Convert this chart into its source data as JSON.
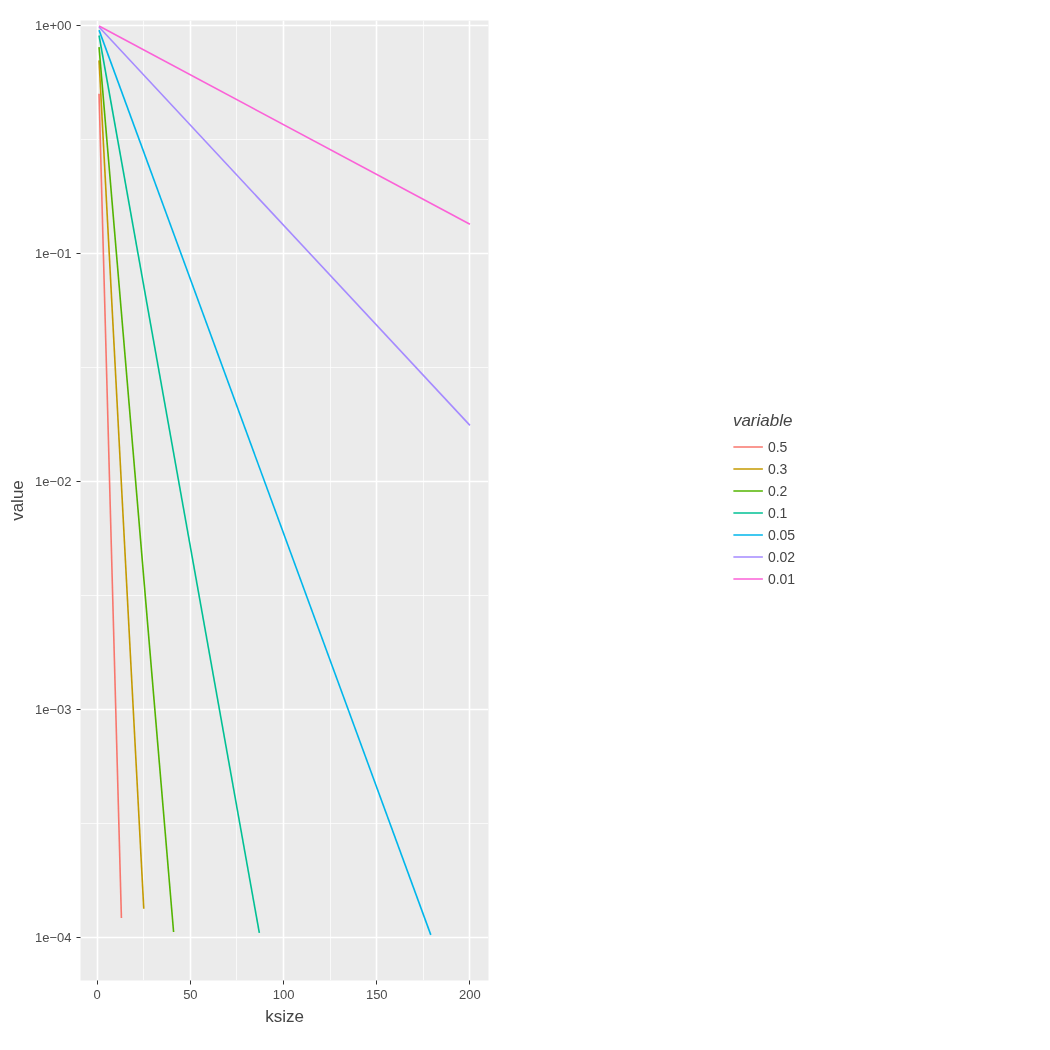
{
  "chart_data": {
    "type": "line",
    "xlabel": "ksize",
    "ylabel": "value",
    "legend_title": "variable",
    "log": "y",
    "grid": true,
    "legend": "right",
    "line_style": "solid",
    "marker": "none",
    "xlim": [
      -8.95,
      209.95
    ],
    "xticks": [
      0,
      50,
      100,
      150,
      200
    ],
    "ylim": [
      6.5e-05,
      1.047
    ],
    "yticks": [
      {
        "value": 0.0001,
        "label": "1e−04"
      },
      {
        "value": 0.001,
        "label": "1e−03"
      },
      {
        "value": 0.01,
        "label": "1e−02"
      },
      {
        "value": 0.1,
        "label": "1e−01"
      },
      {
        "value": 1,
        "label": "1e+00"
      }
    ],
    "series": [
      {
        "name": "0.5",
        "color": "#f8766d",
        "x": [
          1,
          13
        ],
        "values": [
          0.5,
          0.000122
        ]
      },
      {
        "name": "0.3",
        "color": "#c49a00",
        "x": [
          1,
          25
        ],
        "values": [
          0.7,
          0.000134
        ]
      },
      {
        "name": "0.2",
        "color": "#53b400",
        "x": [
          1,
          41
        ],
        "values": [
          0.8,
          0.000106
        ]
      },
      {
        "name": "0.1",
        "color": "#00c094",
        "x": [
          1,
          87
        ],
        "values": [
          0.9,
          0.000105
        ]
      },
      {
        "name": "0.05",
        "color": "#00b6eb",
        "x": [
          1,
          179
        ],
        "values": [
          0.95,
          0.000103
        ]
      },
      {
        "name": "0.02",
        "color": "#a58aff",
        "x": [
          1,
          200
        ],
        "values": [
          0.98,
          0.0176
        ]
      },
      {
        "name": "0.01",
        "color": "#fb61d7",
        "x": [
          1,
          200
        ],
        "values": [
          0.99,
          0.134
        ]
      }
    ]
  }
}
